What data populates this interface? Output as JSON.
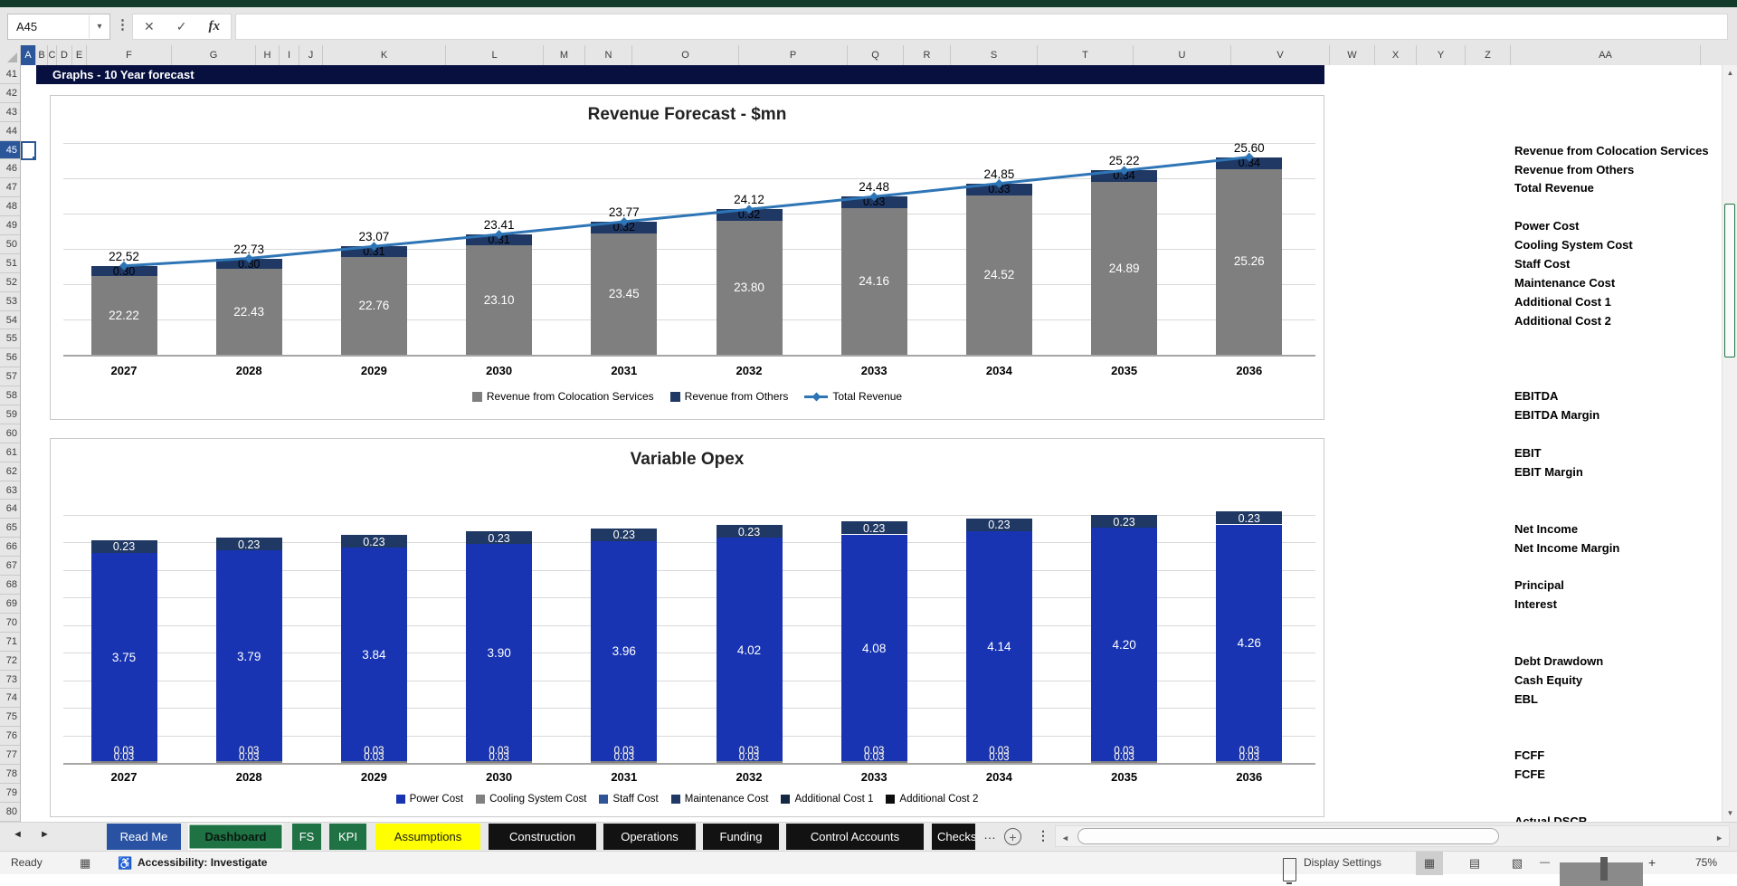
{
  "app": {
    "name_box": "A45",
    "formula": ""
  },
  "icons": {
    "name_box_dropdown": "▾",
    "formula_dots": "⋮",
    "cancel": "✕",
    "enter": "✓",
    "fx": "fx",
    "tab_nav_left": "◄",
    "tab_nav_right": "►",
    "tab_overflow": "…",
    "add_sheet": "+",
    "tab_menu_dots": "⋮",
    "scroll_left": "◄",
    "scroll_right": "►",
    "scroll_up": "▲",
    "scroll_down": "▼",
    "macro": "▦",
    "accessibility": "♿",
    "view_normal": "▦",
    "view_page_layout": "▤",
    "view_page_break": "▧",
    "zoom_out": "—",
    "zoom_in": "+"
  },
  "grid": {
    "columns": [
      "A",
      "B",
      "C",
      "D",
      "E",
      "F",
      "G",
      "H",
      "I",
      "J",
      "K",
      "L",
      "M",
      "N",
      "O",
      "P",
      "Q",
      "R",
      "S",
      "T",
      "U",
      "V",
      "W",
      "X",
      "Y",
      "Z",
      "AA"
    ],
    "selected_column": "A",
    "row_start": 41,
    "row_end": 80,
    "selected_row": 45,
    "selected_cell": "A45"
  },
  "banner": {
    "text": "Graphs - 10 Year forecast"
  },
  "side_labels": [
    {
      "row": 45,
      "text": "Revenue from Colocation Services"
    },
    {
      "row": 46,
      "text": "Revenue from Others"
    },
    {
      "row": 47,
      "text": "Total Revenue"
    },
    {
      "row": 49,
      "text": "Power Cost"
    },
    {
      "row": 50,
      "text": "Cooling System Cost"
    },
    {
      "row": 51,
      "text": "Staff Cost"
    },
    {
      "row": 52,
      "text": "Maintenance Cost"
    },
    {
      "row": 53,
      "text": "Additional Cost 1"
    },
    {
      "row": 54,
      "text": "Additional Cost 2"
    },
    {
      "row": 58,
      "text": "EBITDA"
    },
    {
      "row": 59,
      "text": "EBITDA Margin"
    },
    {
      "row": 61,
      "text": "EBIT"
    },
    {
      "row": 62,
      "text": "EBIT Margin"
    },
    {
      "row": 65,
      "text": "Net Income"
    },
    {
      "row": 66,
      "text": "Net Income Margin"
    },
    {
      "row": 68,
      "text": "Principal"
    },
    {
      "row": 69,
      "text": "Interest"
    },
    {
      "row": 72,
      "text": "Debt Drawdown"
    },
    {
      "row": 73,
      "text": "Cash Equity"
    },
    {
      "row": 74,
      "text": "EBL"
    },
    {
      "row": 77,
      "text": "FCFF"
    },
    {
      "row": 78,
      "text": "FCFE"
    },
    {
      "row": 80,
      "text": "Actual DSCR",
      "clipped": true
    }
  ],
  "chart_data": [
    {
      "type": "bar",
      "subtype": "stacked-column-with-line",
      "title": "Revenue Forecast - $mn",
      "categories": [
        "2027",
        "2028",
        "2029",
        "2030",
        "2031",
        "2032",
        "2033",
        "2034",
        "2035",
        "2036"
      ],
      "series": [
        {
          "name": "Revenue from Colocation Services",
          "kind": "bar",
          "color": "#7F7F7F",
          "label_color": "#FFFFFF",
          "values": [
            22.22,
            22.43,
            22.76,
            23.1,
            23.45,
            23.8,
            24.16,
            24.52,
            24.89,
            25.26
          ]
        },
        {
          "name": "Revenue from Others",
          "kind": "bar",
          "color": "#1F3864",
          "label_color": "#000000",
          "values": [
            0.3,
            0.3,
            0.31,
            0.31,
            0.32,
            0.32,
            0.33,
            0.33,
            0.34,
            0.34
          ]
        },
        {
          "name": "Total Revenue",
          "kind": "line",
          "color": "#2E75B6",
          "label_color": "#000000",
          "values": [
            22.52,
            22.73,
            23.07,
            23.41,
            23.77,
            24.12,
            24.48,
            24.85,
            25.22,
            25.6
          ]
        }
      ],
      "ylim": [
        20,
        26
      ],
      "gridline_step": 1,
      "y_axis_labels": false,
      "legend_position": "bottom"
    },
    {
      "type": "bar",
      "subtype": "stacked-column",
      "title": "Variable Opex",
      "categories": [
        "2027",
        "2028",
        "2029",
        "2030",
        "2031",
        "2032",
        "2033",
        "2034",
        "2035",
        "2036"
      ],
      "series": [
        {
          "name": "Power Cost",
          "kind": "bar",
          "color": "#1834B2",
          "label_color": "#FFFFFF",
          "values": [
            3.75,
            3.79,
            3.84,
            3.9,
            3.96,
            4.02,
            4.08,
            4.14,
            4.2,
            4.26
          ]
        },
        {
          "name": "Cooling System Cost",
          "kind": "bar",
          "color": "#808080",
          "label_color": "#FFFFFF",
          "values": [
            0.03,
            0.03,
            0.03,
            0.03,
            0.03,
            0.03,
            0.03,
            0.03,
            0.03,
            0.03
          ]
        },
        {
          "name": "Staff Cost",
          "kind": "bar",
          "color": "#2F5597",
          "label_color": "#FFFFFF",
          "values": [
            0.03,
            0.03,
            0.03,
            0.03,
            0.03,
            0.03,
            0.03,
            0.03,
            0.03,
            0.03
          ]
        },
        {
          "name": "Maintenance Cost",
          "kind": "bar",
          "color": "#1F3864",
          "label_color": "#FFFFFF",
          "values": [
            0.23,
            0.23,
            0.23,
            0.23,
            0.23,
            0.23,
            0.23,
            0.23,
            0.23,
            0.23
          ]
        },
        {
          "name": "Additional Cost 1",
          "kind": "bar",
          "color": "#152843",
          "values": []
        },
        {
          "name": "Additional Cost 2",
          "kind": "bar",
          "color": "#0D0D0D",
          "values": []
        }
      ],
      "ylim": [
        0,
        4.5
      ],
      "gridline_step": 0.5,
      "y_axis_labels": false,
      "legend_position": "bottom"
    }
  ],
  "sheet_tabs": {
    "tabs": [
      {
        "label": "Read Me",
        "bg": "#2A52A2",
        "fg": "#FFFFFF",
        "active": false
      },
      {
        "label": "Dashboard",
        "bg": "#1F7244",
        "fg": "#09180F",
        "active": true
      },
      {
        "label": "FS",
        "bg": "#1F7244",
        "fg": "#FFFFFF",
        "active": false
      },
      {
        "label": "KPI",
        "bg": "#1F7244",
        "fg": "#FFFFFF",
        "active": false
      },
      {
        "label": "Assumptions",
        "bg": "#FFFF00",
        "fg": "#1A1A1A",
        "active": false
      },
      {
        "label": "Construction",
        "bg": "#121212",
        "fg": "#FFFFFF",
        "active": false
      },
      {
        "label": "Operations",
        "bg": "#121212",
        "fg": "#FFFFFF",
        "active": false
      },
      {
        "label": "Funding",
        "bg": "#121212",
        "fg": "#FFFFFF",
        "active": false
      },
      {
        "label": "Control Accounts",
        "bg": "#121212",
        "fg": "#FFFFFF",
        "active": false
      },
      {
        "label": "Checks",
        "bg": "#121212",
        "fg": "#FFFFFF",
        "active": false,
        "truncated": true
      }
    ]
  },
  "status_bar": {
    "ready": "Ready",
    "accessibility": "Accessibility: Investigate",
    "display_settings": "Display Settings",
    "zoom_level": "75%"
  }
}
